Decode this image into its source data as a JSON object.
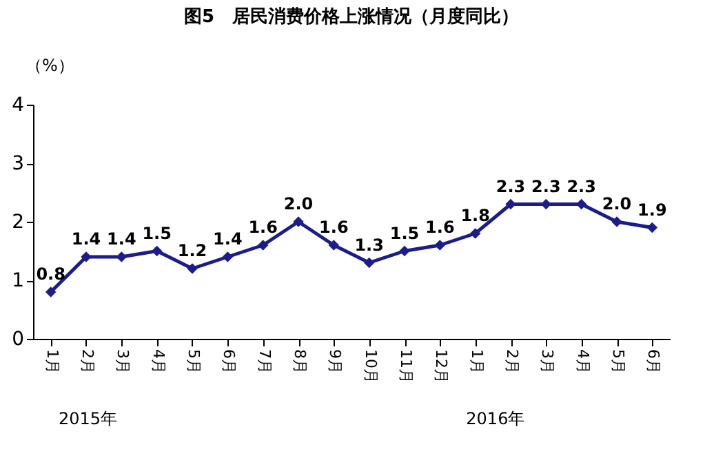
{
  "chart_data": {
    "type": "line",
    "title": "图5　居民消费价格上涨情况（月度同比）",
    "ylabel": "（%）",
    "categories": [
      "1月",
      "2月",
      "3月",
      "4月",
      "5月",
      "6月",
      "7月",
      "8月",
      "9月",
      "10月",
      "11月",
      "12月",
      "1月",
      "2月",
      "3月",
      "4月",
      "5月",
      "6月"
    ],
    "series": [
      {
        "color": "#1c1c8c",
        "values": [
          0.8,
          1.4,
          1.4,
          1.5,
          1.2,
          1.4,
          1.6,
          2.0,
          1.6,
          1.3,
          1.5,
          1.6,
          1.8,
          2.3,
          2.3,
          2.3,
          2.0,
          1.9
        ],
        "value_labels": [
          "0.8",
          "1.4",
          "1.4",
          "1.5",
          "1.2",
          "1.4",
          "1.6",
          "2.0",
          "1.6",
          "1.3",
          "1.5",
          "1.6",
          "1.8",
          "2.3",
          "2.3",
          "2.3",
          "2.0",
          "1.9"
        ]
      }
    ],
    "ylim": [
      0,
      4
    ],
    "yticks": [
      0,
      1,
      2,
      3,
      4
    ],
    "marker": "diamond",
    "line_style": "solid",
    "annotations": [
      "2015年",
      "2016年"
    ]
  }
}
